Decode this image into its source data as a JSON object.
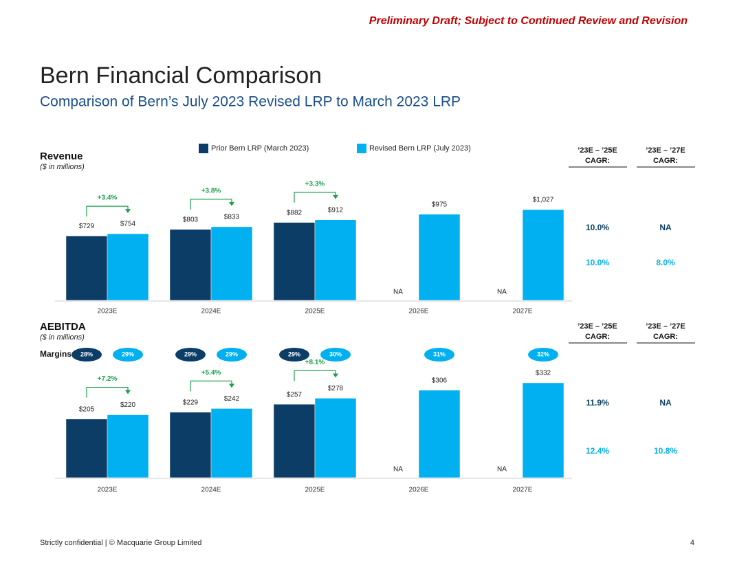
{
  "header": {
    "draft_notice": "Preliminary Draft; Subject to Continued Review and Revision",
    "title": "Bern Financial Comparison",
    "subtitle": "Comparison of Bern’s July 2023 Revised LRP to March 2023 LRP"
  },
  "footer": {
    "left": "Strictly confidential | © Macquarie Group Limited",
    "page": "4"
  },
  "chart_data": [
    {
      "type": "bar",
      "title": "Revenue",
      "subtitle": "($ in millions)",
      "categories": [
        "2023E",
        "2024E",
        "2025E",
        "2026E",
        "2027E"
      ],
      "series": [
        {
          "name": "Prior Bern LRP (March 2023)",
          "color": "#0b3d66",
          "values": [
            729,
            803,
            882,
            null,
            null
          ],
          "value_labels": [
            "$729",
            "$803",
            "$882",
            "NA",
            "NA"
          ]
        },
        {
          "name": "Revised Bern LRP (July 2023)",
          "color": "#00b0f0",
          "values": [
            754,
            833,
            912,
            975,
            1027
          ],
          "value_labels": [
            "$754",
            "$833",
            "$912",
            "$975",
            "$1,027"
          ]
        }
      ],
      "growth_labels": [
        "+3.4%",
        "+3.8%",
        "+3.3%",
        null,
        null
      ],
      "growth_color": "#1aa04b",
      "cagr": {
        "headers": [
          [
            "’23E – ’25E",
            "CAGR:"
          ],
          [
            "’23E – ’27E",
            "CAGR:"
          ]
        ],
        "rows": [
          [
            "10.0%",
            "NA"
          ],
          [
            "10.0%",
            "8.0%"
          ]
        ]
      }
    },
    {
      "type": "bar",
      "title": "AEBITDA",
      "subtitle": "($ in millions)",
      "categories": [
        "2023E",
        "2024E",
        "2025E",
        "2026E",
        "2027E"
      ],
      "margins_label": "Margins:",
      "series": [
        {
          "color": "#0b3d66",
          "values": [
            205,
            229,
            257,
            null,
            null
          ],
          "value_labels": [
            "$205",
            "$229",
            "$257",
            "NA",
            "NA"
          ],
          "margin_labels": [
            "28%",
            "29%",
            "29%",
            null,
            null
          ]
        },
        {
          "color": "#00b0f0",
          "values": [
            220,
            242,
            278,
            306,
            332
          ],
          "value_labels": [
            "$220",
            "$242",
            "$278",
            "$306",
            "$332"
          ],
          "margin_labels": [
            "29%",
            "29%",
            "30%",
            "31%",
            "32%"
          ]
        }
      ],
      "growth_labels": [
        "+7.2%",
        "+5.4%",
        "+8.1%",
        null,
        null
      ],
      "growth_color": "#1aa04b",
      "cagr": {
        "headers": [
          [
            "’23E – ’25E",
            "CAGR:"
          ],
          [
            "’23E – ’27E",
            "CAGR:"
          ]
        ],
        "rows": [
          [
            "11.9%",
            "NA"
          ],
          [
            "12.4%",
            "10.8%"
          ]
        ]
      }
    }
  ]
}
